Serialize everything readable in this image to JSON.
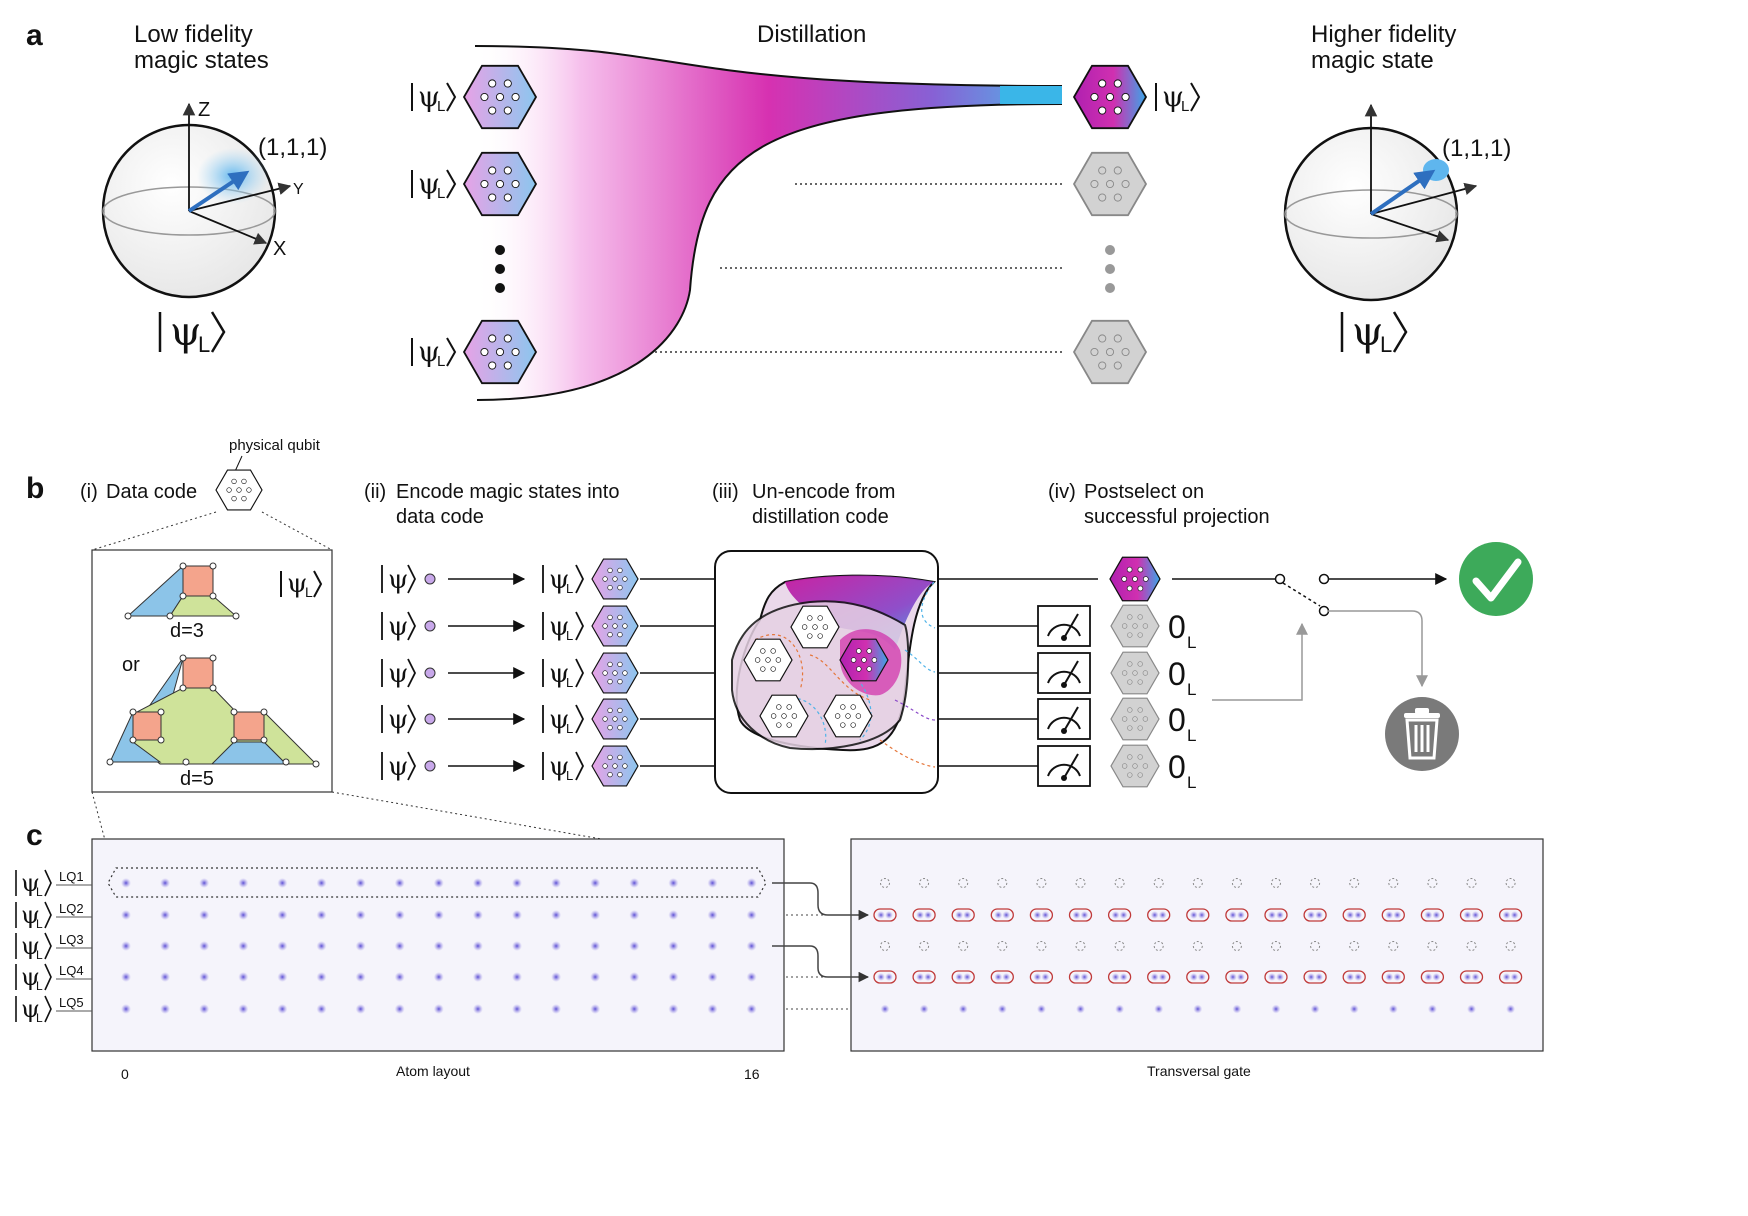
{
  "panel_a": {
    "label": "a",
    "left_title": [
      "Low fidelity",
      "magic states"
    ],
    "center_title": "Distillation",
    "right_title": [
      "Higher fidelity",
      "magic state"
    ],
    "coord_label": "(1,1,1)",
    "axis_z": "Z",
    "axis_y": "Y",
    "axis_x": "X",
    "ket_psi": "ψ",
    "ket_sub": "L"
  },
  "panel_b": {
    "label": "b",
    "physical_qubit": "physical qubit",
    "step_i_num": "(i)",
    "step_i": "Data code",
    "step_ii_num": "(ii)",
    "step_ii": [
      "Encode magic states into",
      "data code"
    ],
    "step_iii_num": "(iii)",
    "step_iii": [
      "Un-encode from",
      "distillation code"
    ],
    "step_iv_num": "(iv)",
    "step_iv": [
      "Postselect on",
      "successful projection"
    ],
    "d3": "d=3",
    "or": "or",
    "d5": "d=5",
    "zero": "0",
    "zero_sub": "L",
    "colors": {
      "pink": "#e040c0",
      "blue": "#4fb3e8",
      "orange": "#f4a48c",
      "green": "#cfe39a",
      "lightblue": "#8cc4e8",
      "check": "#3daa5a",
      "trash": "#7a7a7a"
    }
  },
  "panel_c": {
    "label": "c",
    "rows": [
      "LQ1",
      "LQ2",
      "LQ3",
      "LQ4",
      "LQ5"
    ],
    "axis_start": "0",
    "axis_end": "16",
    "left_caption": "Atom layout",
    "right_caption": "Transversal gate"
  }
}
